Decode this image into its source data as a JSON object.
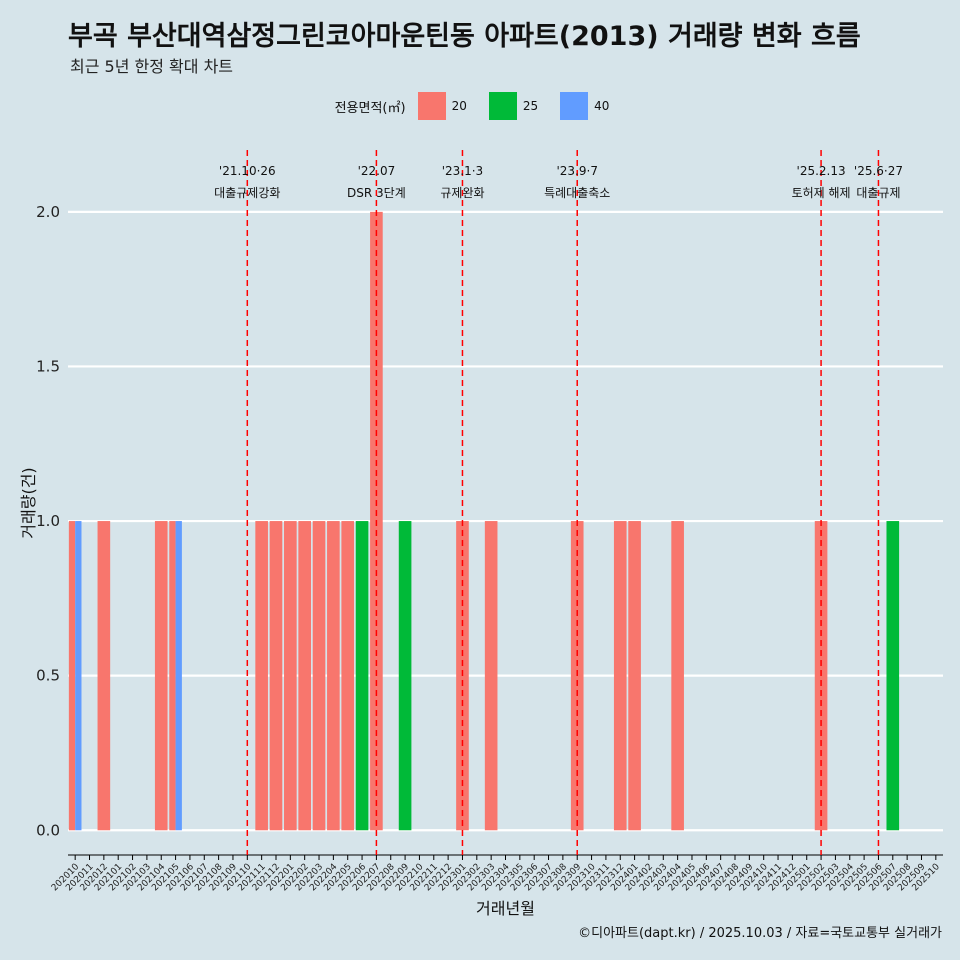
{
  "title": "부곡 부산대역삼정그린코아마운틴동 아파트(2013) 거래량 변화 흐름",
  "subtitle": "최근 5년 한정 확대 차트",
  "caption": "©디아파트(dapt.kr) / 2025.10.03 / 자료=국토교통부 실거래가",
  "colors": {
    "20": "#f8766d",
    "25": "#00ba38",
    "40": "#619cff",
    "event_line": "#ff0000",
    "background": "#d6e4ea"
  },
  "chart_data": {
    "type": "bar",
    "xlabel": "거래년월",
    "ylabel": "거래량(건)",
    "ylim": [
      -0.08,
      2.2
    ],
    "yticks": [
      0.0,
      0.5,
      1.0,
      1.5,
      2.0
    ],
    "legend_title": "전용면적(㎡)",
    "legend_position": "top",
    "categories": [
      "202010",
      "202011",
      "202012",
      "202101",
      "202102",
      "202103",
      "202104",
      "202105",
      "202106",
      "202107",
      "202108",
      "202109",
      "202110",
      "202111",
      "202112",
      "202201",
      "202202",
      "202203",
      "202204",
      "202205",
      "202206",
      "202207",
      "202208",
      "202209",
      "202210",
      "202211",
      "202212",
      "202301",
      "202302",
      "202303",
      "202304",
      "202305",
      "202306",
      "202307",
      "202308",
      "202309",
      "202310",
      "202311",
      "202312",
      "202401",
      "202402",
      "202403",
      "202404",
      "202405",
      "202406",
      "202407",
      "202408",
      "202409",
      "202410",
      "202411",
      "202412",
      "202501",
      "202502",
      "202503",
      "202504",
      "202505",
      "202506",
      "202507",
      "202508",
      "202509",
      "202510"
    ],
    "series": [
      {
        "name": "20",
        "values": [
          1,
          0,
          1,
          0,
          0,
          0,
          1,
          1,
          0,
          0,
          0,
          0,
          0,
          1,
          1,
          1,
          1,
          1,
          1,
          1,
          0,
          2,
          0,
          0,
          0,
          0,
          0,
          1,
          0,
          1,
          0,
          0,
          0,
          0,
          0,
          1,
          0,
          0,
          1,
          1,
          0,
          0,
          1,
          0,
          0,
          0,
          0,
          0,
          0,
          0,
          0,
          0,
          1,
          0,
          0,
          0,
          0,
          0,
          0,
          0,
          0
        ]
      },
      {
        "name": "25",
        "values": [
          0,
          0,
          0,
          0,
          0,
          0,
          0,
          0,
          0,
          0,
          0,
          0,
          0,
          0,
          0,
          0,
          0,
          0,
          0,
          0,
          1,
          0,
          0,
          1,
          0,
          0,
          0,
          0,
          0,
          0,
          0,
          0,
          0,
          0,
          0,
          0,
          0,
          0,
          0,
          0,
          0,
          0,
          0,
          0,
          0,
          0,
          0,
          0,
          0,
          0,
          0,
          0,
          0,
          0,
          0,
          0,
          0,
          1,
          0,
          0,
          0
        ]
      },
      {
        "name": "40",
        "values": [
          1,
          0,
          0,
          0,
          0,
          0,
          0,
          1,
          0,
          0,
          0,
          0,
          0,
          0,
          0,
          0,
          0,
          0,
          0,
          0,
          0,
          0,
          0,
          0,
          0,
          0,
          0,
          0,
          0,
          0,
          0,
          0,
          0,
          0,
          0,
          0,
          0,
          0,
          0,
          0,
          0,
          0,
          0,
          0,
          0,
          0,
          0,
          0,
          0,
          0,
          0,
          0,
          0,
          0,
          0,
          0,
          0,
          0,
          0,
          0,
          0
        ]
      }
    ],
    "events": [
      {
        "month": "202110",
        "date": "'21.10·26",
        "label": "대출규제강화"
      },
      {
        "month": "202207",
        "date": "'22.07",
        "label": "DSR 3단계"
      },
      {
        "month": "202301",
        "date": "'23.1·3",
        "label": "규제완화"
      },
      {
        "month": "202309",
        "date": "'23.9·7",
        "label": "특례대출축소"
      },
      {
        "month": "202502",
        "date": "'25.2.13",
        "label": "토허제 해제"
      },
      {
        "month": "202506",
        "date": "'25.6·27",
        "label": "대출규제"
      }
    ]
  }
}
